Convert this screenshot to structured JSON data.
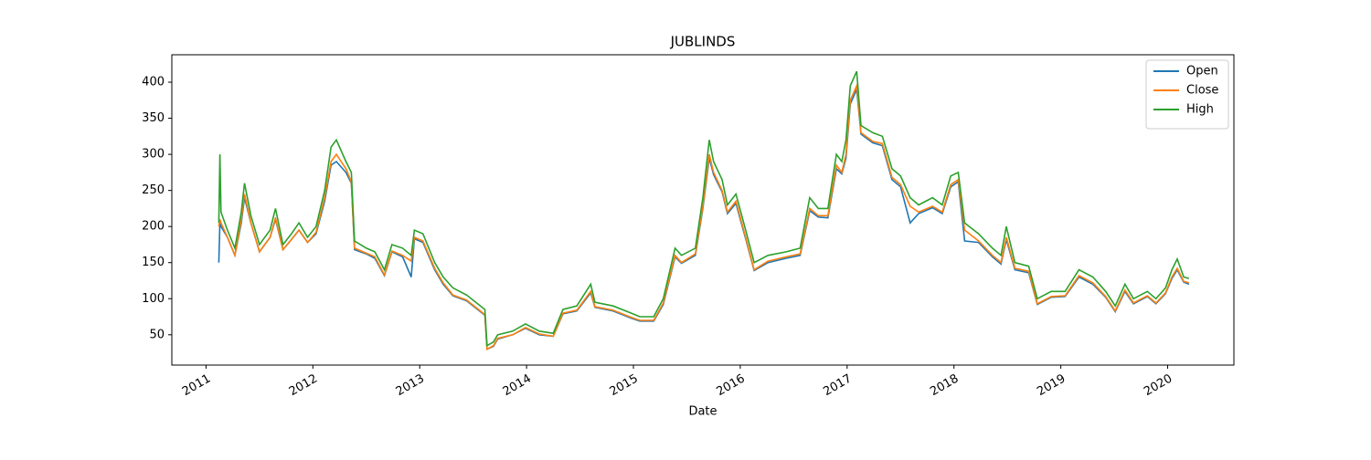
{
  "chart_data": {
    "type": "line",
    "title": "JUBLINDS",
    "x_label": "Date",
    "x": [
      2011.12,
      2011.13,
      2011.14,
      2011.2,
      2011.27,
      2011.33,
      2011.36,
      2011.42,
      2011.5,
      2011.6,
      2011.65,
      2011.72,
      2011.8,
      2011.87,
      2011.95,
      2012.03,
      2012.11,
      2012.17,
      2012.22,
      2012.31,
      2012.36,
      2012.39,
      2012.5,
      2012.58,
      2012.67,
      2012.74,
      2012.84,
      2012.92,
      2012.95,
      2013.03,
      2013.14,
      2013.22,
      2013.31,
      2013.44,
      2013.61,
      2013.63,
      2013.69,
      2013.73,
      2013.87,
      2013.99,
      2014.12,
      2014.25,
      2014.34,
      2014.47,
      2014.6,
      2014.64,
      2014.81,
      2014.98,
      2015.06,
      2015.19,
      2015.28,
      2015.39,
      2015.45,
      2015.58,
      2015.65,
      2015.71,
      2015.75,
      2015.83,
      2015.88,
      2015.96,
      2016.05,
      2016.13,
      2016.26,
      2016.43,
      2016.56,
      2016.65,
      2016.73,
      2016.82,
      2016.9,
      2016.95,
      2016.99,
      2017.03,
      2017.09,
      2017.13,
      2017.24,
      2017.33,
      2017.42,
      2017.5,
      2017.59,
      2017.67,
      2017.8,
      2017.89,
      2017.97,
      2018.04,
      2018.1,
      2018.23,
      2018.36,
      2018.44,
      2018.49,
      2018.57,
      2018.7,
      2018.78,
      2018.91,
      2019.04,
      2019.17,
      2019.3,
      2019.42,
      2019.51,
      2019.6,
      2019.68,
      2019.81,
      2019.89,
      2019.98,
      2020.04,
      2020.09,
      2020.15,
      2020.2
    ],
    "series": [
      {
        "name": "Open",
        "color": "#1f77b4",
        "values": [
          150,
          205,
          200,
          185,
          160,
          205,
          240,
          205,
          165,
          185,
          210,
          168,
          182,
          195,
          178,
          190,
          235,
          285,
          290,
          275,
          260,
          168,
          162,
          156,
          132,
          165,
          158,
          130,
          183,
          178,
          140,
          120,
          104,
          97,
          77,
          30,
          34,
          44,
          50,
          59,
          50,
          48,
          79,
          83,
          108,
          88,
          83,
          73,
          69,
          69,
          92,
          158,
          149,
          160,
          225,
          295,
          272,
          248,
          218,
          232,
          183,
          139,
          150,
          156,
          160,
          222,
          213,
          212,
          280,
          273,
          295,
          370,
          390,
          328,
          316,
          312,
          265,
          255,
          205,
          218,
          226,
          218,
          255,
          262,
          180,
          178,
          158,
          148,
          182,
          140,
          136,
          92,
          102,
          103,
          130,
          120,
          102,
          82,
          110,
          93,
          103,
          93,
          107,
          128,
          140,
          123,
          120
        ]
      },
      {
        "name": "Close",
        "color": "#ff7f0e",
        "values": [
          200,
          210,
          205,
          185,
          160,
          210,
          245,
          205,
          165,
          185,
          212,
          168,
          182,
          195,
          178,
          192,
          240,
          290,
          300,
          280,
          262,
          170,
          163,
          158,
          133,
          166,
          160,
          152,
          185,
          180,
          142,
          122,
          105,
          98,
          78,
          30,
          35,
          45,
          50,
          60,
          51,
          48,
          80,
          84,
          110,
          89,
          84,
          74,
          70,
          70,
          94,
          160,
          150,
          162,
          228,
          300,
          275,
          250,
          220,
          235,
          185,
          140,
          152,
          158,
          162,
          225,
          215,
          215,
          285,
          275,
          300,
          375,
          395,
          330,
          318,
          315,
          268,
          258,
          228,
          220,
          228,
          220,
          258,
          265,
          195,
          180,
          160,
          150,
          185,
          142,
          138,
          93,
          103,
          104,
          132,
          122,
          103,
          83,
          112,
          94,
          104,
          94,
          108,
          130,
          142,
          124,
          122
        ]
      },
      {
        "name": "High",
        "color": "#2ca02c",
        "values": [
          205,
          300,
          220,
          195,
          170,
          220,
          260,
          215,
          175,
          195,
          225,
          175,
          190,
          205,
          185,
          200,
          250,
          310,
          320,
          290,
          275,
          180,
          170,
          165,
          140,
          175,
          170,
          160,
          195,
          190,
          150,
          130,
          115,
          105,
          85,
          35,
          40,
          50,
          55,
          65,
          55,
          52,
          85,
          90,
          120,
          95,
          90,
          80,
          75,
          75,
          100,
          170,
          160,
          170,
          240,
          320,
          290,
          265,
          230,
          245,
          195,
          150,
          160,
          165,
          170,
          240,
          225,
          225,
          300,
          290,
          320,
          395,
          415,
          340,
          330,
          325,
          280,
          270,
          240,
          230,
          240,
          230,
          270,
          275,
          205,
          190,
          170,
          160,
          200,
          150,
          145,
          100,
          110,
          110,
          140,
          130,
          110,
          90,
          120,
          100,
          110,
          100,
          115,
          140,
          155,
          130,
          128
        ]
      }
    ],
    "xlim": [
      2010.68,
      2020.62
    ],
    "xticks": [
      2011,
      2012,
      2013,
      2014,
      2015,
      2016,
      2017,
      2018,
      2019,
      2020
    ],
    "ylim": [
      8,
      438
    ],
    "yticks": [
      50,
      100,
      150,
      200,
      250,
      300,
      350,
      400
    ],
    "legend": "upper right"
  }
}
